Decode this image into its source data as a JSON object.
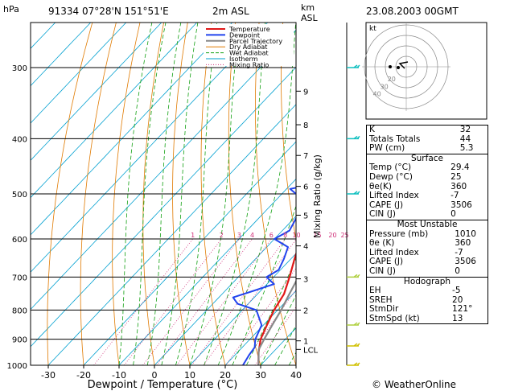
{
  "header": {
    "pressure_unit": "hPa",
    "station": "91334  07°28'N  151°51'E",
    "elevation": "2m  ASL",
    "km_label": "km",
    "asl_label": "ASL",
    "datetime": "23.08.2003  00GMT"
  },
  "legend": [
    "Temperature",
    "Dewpoint",
    "Parcel Trajectory",
    "Dry Adiabat",
    "Wet Adiabat",
    "Isotherm",
    "Mixing Ratio"
  ],
  "colors": {
    "temperature": "#e01818",
    "dewpoint": "#2244ee",
    "parcel": "#888888",
    "dry_adiabat": "#e07a00",
    "wet_adiabat": "#11a011",
    "isotherm": "#00a0d0",
    "mixing_ratio": "#d0307a"
  },
  "chart_data": {
    "type": "line",
    "title": "",
    "xlabel": "Dewpoint / Temperature (°C)",
    "ylabel": "hPa",
    "y_right_label": "Mixing Ratio (g/kg)",
    "xlim": [
      -35,
      40
    ],
    "ylim": [
      1000,
      250
    ],
    "y_scale": "log",
    "x_ticks": [
      -30,
      -20,
      -10,
      0,
      10,
      20,
      30,
      40
    ],
    "pressure_ticks": [
      300,
      400,
      500,
      600,
      700,
      800,
      900,
      1000
    ],
    "km_ticks": [
      {
        "p": 1000,
        "label": "LCL",
        "pk": 938
      },
      {
        "p": 906,
        "label": "1"
      },
      {
        "p": 800,
        "label": "2"
      },
      {
        "p": 705,
        "label": "3"
      },
      {
        "p": 617,
        "label": "4"
      },
      {
        "p": 545,
        "label": "5"
      },
      {
        "p": 485,
        "label": "6"
      },
      {
        "p": 428,
        "label": "7"
      },
      {
        "p": 378,
        "label": "8"
      },
      {
        "p": 330,
        "label": "9"
      }
    ],
    "mixing_ratio_labels": [
      "1",
      "2",
      "3",
      "4",
      "6",
      "8",
      "10",
      "15",
      "20",
      "25"
    ],
    "mixing_ratio_values": [
      1,
      2,
      3,
      4,
      6,
      8,
      10,
      15,
      20,
      25
    ],
    "series": [
      {
        "name": "Temperature",
        "points": [
          [
            1000,
            29.4
          ],
          [
            950,
            26
          ],
          [
            900,
            23
          ],
          [
            850,
            21
          ],
          [
            800,
            19
          ],
          [
            750,
            17.5
          ],
          [
            700,
            14.5
          ],
          [
            650,
            11
          ],
          [
            600,
            7.5
          ],
          [
            550,
            4
          ],
          [
            500,
            0.5
          ],
          [
            480,
            0
          ],
          [
            450,
            -3
          ],
          [
            420,
            -6.5
          ],
          [
            400,
            -8.5
          ],
          [
            370,
            -12
          ],
          [
            350,
            -15
          ],
          [
            320,
            -20
          ],
          [
            300,
            -24
          ],
          [
            280,
            -28
          ],
          [
            260,
            -33
          ],
          [
            250,
            -35
          ]
        ]
      },
      {
        "name": "Dewpoint",
        "points": [
          [
            1000,
            25
          ],
          [
            960,
            24
          ],
          [
            930,
            23.5
          ],
          [
            900,
            21.5
          ],
          [
            850,
            19.5
          ],
          [
            800,
            14
          ],
          [
            780,
            7
          ],
          [
            760,
            4
          ],
          [
            740,
            8
          ],
          [
            720,
            12
          ],
          [
            700,
            8
          ],
          [
            680,
            9.5
          ],
          [
            650,
            8
          ],
          [
            620,
            6
          ],
          [
            600,
            0
          ],
          [
            580,
            2
          ],
          [
            560,
            1
          ],
          [
            540,
            0
          ],
          [
            510,
            -3
          ],
          [
            500,
            -6
          ],
          [
            490,
            -9
          ],
          [
            480,
            -3
          ],
          [
            460,
            -3
          ],
          [
            440,
            -10
          ],
          [
            420,
            -10
          ],
          [
            400,
            -12
          ],
          [
            380,
            -13
          ],
          [
            360,
            -20
          ],
          [
            340,
            -20
          ],
          [
            330,
            -25
          ],
          [
            320,
            -23
          ],
          [
            310,
            -26
          ],
          [
            300,
            -31
          ],
          [
            290,
            -26
          ],
          [
            270,
            -26
          ],
          [
            250,
            -35
          ]
        ]
      },
      {
        "name": "Parcel Trajectory",
        "points": [
          [
            1000,
            29.4
          ],
          [
            938,
            25.2
          ],
          [
            900,
            24
          ],
          [
            850,
            22.5
          ],
          [
            800,
            21
          ],
          [
            750,
            19
          ],
          [
            700,
            17
          ],
          [
            650,
            14.5
          ],
          [
            600,
            11.5
          ],
          [
            550,
            8
          ],
          [
            500,
            4
          ],
          [
            450,
            -1
          ],
          [
            400,
            -6.5
          ],
          [
            350,
            -13
          ],
          [
            300,
            -21
          ],
          [
            270,
            -27
          ]
        ]
      }
    ],
    "grid": true
  },
  "hodograph": {
    "label": "kt",
    "rings": [
      10,
      20,
      30,
      40
    ],
    "ring_labels": [
      "20",
      "30",
      "40"
    ]
  },
  "indices": {
    "k_label": "K",
    "k": "32",
    "tt_label": "Totals Totals",
    "tt": "44",
    "pw_label": "PW (cm)",
    "pw": "5.3"
  },
  "surface": {
    "title": "Surface",
    "rows": [
      [
        "Temp (°C)",
        "29.4"
      ],
      [
        "Dewp (°C)",
        "25"
      ],
      [
        "θe(K)",
        "360"
      ],
      [
        "Lifted Index",
        "-7"
      ],
      [
        "CAPE (J)",
        "3506"
      ],
      [
        "CIN (J)",
        "0"
      ]
    ]
  },
  "most_unstable": {
    "title": "Most Unstable",
    "rows": [
      [
        "Pressure (mb)",
        "1010"
      ],
      [
        "θe (K)",
        "360"
      ],
      [
        "Lifted Index",
        "-7"
      ],
      [
        "CAPE (J)",
        "3506"
      ],
      [
        "CIN (J)",
        "0"
      ]
    ]
  },
  "hodograph_table": {
    "title": "Hodograph",
    "rows": [
      [
        "EH",
        "-5"
      ],
      [
        "SREH",
        "20"
      ],
      [
        "StmDir",
        "121°"
      ],
      [
        "StmSpd (kt)",
        "13"
      ]
    ]
  },
  "copyright": "© WeatherOnline"
}
